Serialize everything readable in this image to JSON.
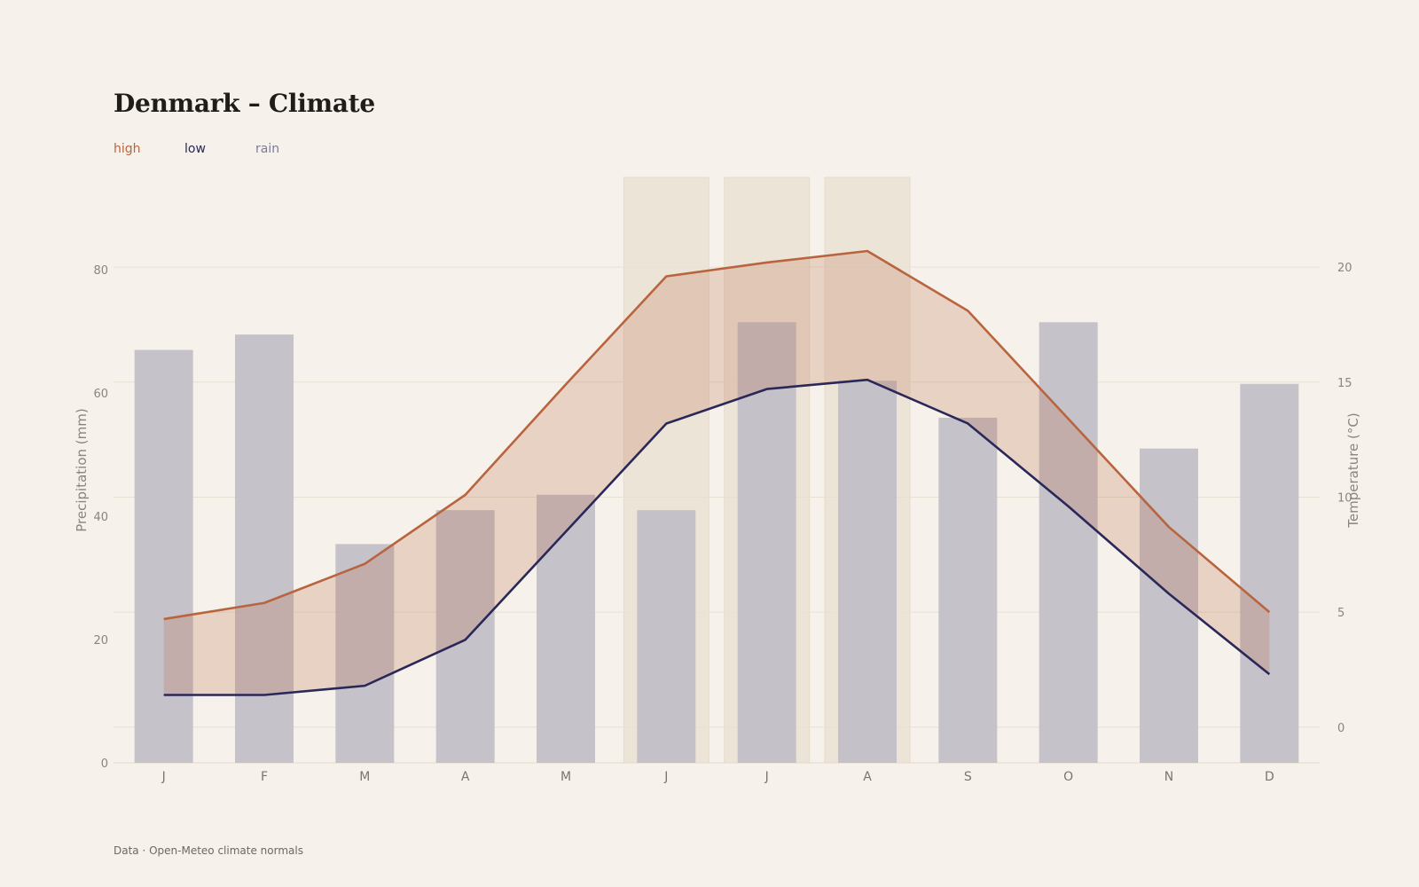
{
  "title": "Denmark – Climate",
  "legend": {
    "high_label": "high",
    "low_label": "low",
    "rain_label": "rain"
  },
  "footer": "Data · Open-Meteo climate normals",
  "colors": {
    "background": "#f6f1ea",
    "high": "#b8653f",
    "low": "#2a2859",
    "rain": "#c3bfc7",
    "rain_legend": "#7e7b96",
    "highlight": "#ede4d8"
  },
  "chart_data": {
    "type": "bar",
    "categories": [
      "J",
      "F",
      "M",
      "A",
      "M",
      "J",
      "J",
      "A",
      "S",
      "O",
      "N",
      "D"
    ],
    "series": [
      {
        "name": "rain",
        "type": "bar",
        "axis": "left",
        "values": [
          67,
          69.5,
          35.5,
          41,
          43.5,
          41,
          71.5,
          62,
          56,
          71.5,
          51,
          61.5
        ]
      },
      {
        "name": "high",
        "type": "line",
        "axis": "right",
        "values": [
          4.7,
          5.4,
          7.1,
          10.1,
          14.9,
          19.6,
          20.2,
          20.7,
          18.1,
          13.4,
          8.7,
          5.0
        ]
      },
      {
        "name": "low",
        "type": "line",
        "axis": "right",
        "values": [
          1.4,
          1.4,
          1.8,
          3.8,
          8.5,
          13.2,
          14.7,
          15.1,
          13.2,
          9.6,
          5.8,
          2.3
        ]
      }
    ],
    "highlighted_months": [
      5,
      6,
      7
    ],
    "ylabel": "Precipitation (mm)",
    "ylabel_right": "Temperature (°C)",
    "ylim": [
      0,
      95
    ],
    "ylim_right": [
      -1.55,
      23.9
    ],
    "yticks": [
      0,
      20,
      40,
      60,
      80
    ],
    "yticks_right": [
      0,
      5,
      10,
      15,
      20
    ],
    "grid": true,
    "legend_position": "top-left"
  }
}
